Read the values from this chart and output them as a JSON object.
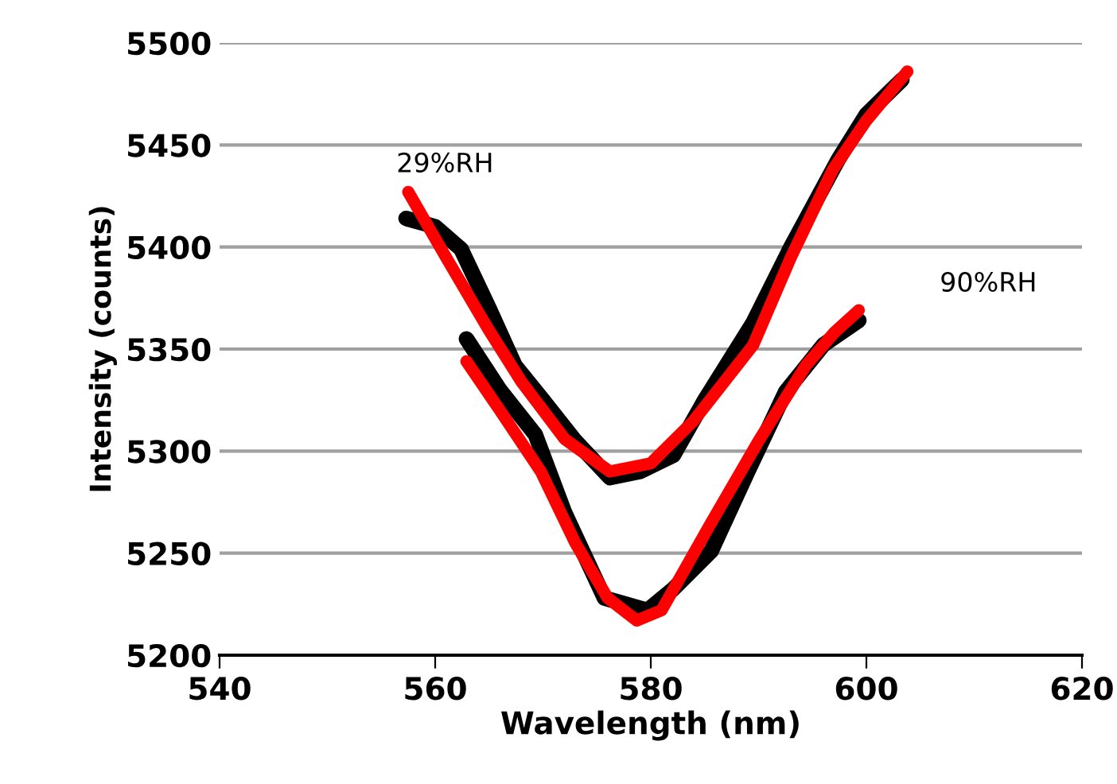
{
  "chart_data": {
    "type": "line",
    "xlabel": "Wavelength (nm)",
    "ylabel": "Intensity (counts)",
    "xlim": [
      540,
      620
    ],
    "xticks": [
      540,
      560,
      580,
      600,
      620
    ],
    "ylim": [
      5200,
      5500
    ],
    "yticks": [
      5200,
      5250,
      5300,
      5350,
      5400,
      5450,
      5500
    ],
    "grid": "y",
    "marker": "none",
    "line_style": "solid",
    "series": [
      {
        "color": "#000000",
        "x": [
          557.3,
          560,
          562.4,
          565,
          567.4,
          570,
          573,
          576.2,
          579,
          582.1,
          585,
          589.5,
          593,
          597.4,
          600,
          603.3
        ],
        "values": [
          5414,
          5410,
          5399,
          5370,
          5342,
          5325,
          5305,
          5287,
          5290,
          5298,
          5325,
          5363,
          5400,
          5443,
          5465,
          5482
        ]
      },
      {
        "color": "#000000",
        "x": [
          562.9,
          566,
          569.3,
          572,
          575.7,
          579.7,
          582,
          585.6,
          589,
          592.5,
          596,
          599.3
        ],
        "values": [
          5355,
          5330,
          5308,
          5270,
          5228,
          5222,
          5232,
          5251,
          5290,
          5329,
          5352,
          5364
        ]
      },
      {
        "color": "#ff0000",
        "x": [
          557.5,
          561,
          564.9,
          568,
          572,
          576.2,
          580,
          584,
          589.5,
          593,
          596.9,
          600,
          603.8
        ],
        "values": [
          5427,
          5395,
          5360,
          5334,
          5306,
          5290,
          5294,
          5315,
          5352,
          5395,
          5438,
          5462,
          5486
        ]
      },
      {
        "color": "#ff0000",
        "x": [
          562.9,
          566,
          569.8,
          573,
          576,
          578.7,
          581,
          585.5,
          590,
          594.4,
          597,
          599.3
        ],
        "values": [
          5344,
          5320,
          5290,
          5255,
          5228,
          5217,
          5222,
          5264,
          5305,
          5342,
          5358,
          5369
        ]
      }
    ],
    "annotations": [
      "29%RH",
      "90%RH"
    ]
  }
}
